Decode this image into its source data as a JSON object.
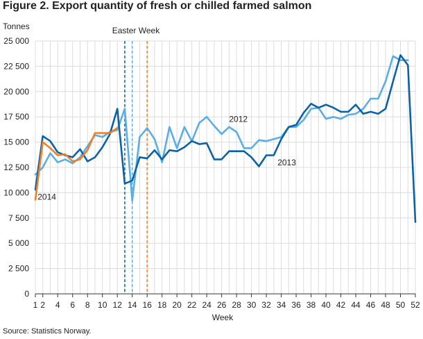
{
  "chart_data": {
    "type": "line",
    "title": "Figure 2. Export quantity of fresh or chilled farmed salmon",
    "ylabel": "Tonnes",
    "xlabel": "Week",
    "source": "Source: Statistics Norway.",
    "xlim": [
      1,
      52
    ],
    "ylim": [
      0,
      25000
    ],
    "x_ticks": [
      1,
      2,
      4,
      6,
      8,
      10,
      12,
      14,
      16,
      18,
      20,
      22,
      24,
      26,
      28,
      30,
      32,
      34,
      36,
      38,
      40,
      42,
      44,
      46,
      48,
      50,
      52
    ],
    "y_ticks": [
      {
        "value": 0,
        "label": "0"
      },
      {
        "value": 2500,
        "label": "2 500"
      },
      {
        "value": 5000,
        "label": "5 000"
      },
      {
        "value": 7500,
        "label": "7 500"
      },
      {
        "value": 10000,
        "label": "10 000"
      },
      {
        "value": 12500,
        "label": "12 500"
      },
      {
        "value": 15000,
        "label": "15 000"
      },
      {
        "value": 17500,
        "label": "17 500"
      },
      {
        "value": 20000,
        "label": "20 000"
      },
      {
        "value": 22500,
        "label": "22 500"
      },
      {
        "value": 25000,
        "label": "25 000"
      }
    ],
    "grid": "vertical and horizontal",
    "annotations": [
      {
        "text": "Easter Week"
      }
    ],
    "easter_weeks": [
      {
        "week": 13,
        "color": "#0b62a4"
      },
      {
        "week": 14,
        "color": "#5aaee3"
      },
      {
        "week": 16,
        "color": "#f07f26"
      }
    ],
    "series": [
      {
        "name": "2012",
        "color": "#5aaee3",
        "label": {
          "week": 27,
          "value": 17000
        },
        "x": [
          1,
          2,
          3,
          4,
          5,
          6,
          7,
          8,
          9,
          10,
          11,
          12,
          13,
          14,
          15,
          16,
          17,
          18,
          19,
          20,
          21,
          22,
          23,
          24,
          25,
          26,
          27,
          28,
          29,
          30,
          31,
          32,
          33,
          34,
          35,
          36,
          37,
          38,
          39,
          40,
          41,
          42,
          43,
          44,
          45,
          46,
          47,
          48,
          49,
          50,
          51
        ],
        "values": [
          11800,
          12500,
          13900,
          13000,
          13300,
          12900,
          13500,
          14600,
          15700,
          15500,
          16000,
          16200,
          18300,
          9200,
          15500,
          16400,
          15300,
          13000,
          16500,
          14400,
          16500,
          15100,
          16900,
          17500,
          16600,
          15800,
          16500,
          16000,
          14400,
          14400,
          15200,
          15100,
          15300,
          15500,
          16500,
          16500,
          17200,
          18300,
          18400,
          17300,
          17500,
          17300,
          17700,
          17800,
          18300,
          19300,
          19300,
          21000,
          23500,
          23100,
          23100
        ]
      },
      {
        "name": "2013",
        "color": "#0b62a4",
        "label": {
          "week": 33.5,
          "value": 12700
        },
        "x": [
          1,
          2,
          3,
          4,
          5,
          6,
          7,
          8,
          9,
          10,
          11,
          12,
          13,
          14,
          15,
          16,
          17,
          18,
          19,
          20,
          21,
          22,
          23,
          24,
          25,
          26,
          27,
          28,
          29,
          30,
          31,
          32,
          33,
          34,
          35,
          36,
          37,
          38,
          39,
          40,
          41,
          42,
          43,
          44,
          45,
          46,
          47,
          48,
          49,
          50,
          51,
          52
        ],
        "values": [
          10300,
          15600,
          15100,
          14000,
          13700,
          13500,
          14300,
          13100,
          13500,
          14500,
          15800,
          18300,
          10900,
          11200,
          13500,
          13400,
          14200,
          13300,
          14200,
          14100,
          14500,
          15100,
          14800,
          14900,
          13300,
          13300,
          14100,
          14100,
          14100,
          13500,
          12600,
          13700,
          13700,
          15300,
          16500,
          16700,
          17900,
          18800,
          18400,
          18700,
          18400,
          18000,
          18000,
          18700,
          17800,
          18000,
          17800,
          18300,
          21000,
          23600,
          22600,
          7100
        ]
      },
      {
        "name": "2014",
        "color": "#f07f26",
        "label": {
          "week": 1.3,
          "value": 9300
        },
        "x": [
          1,
          2,
          3,
          4,
          5,
          6,
          7,
          8,
          9,
          10,
          11,
          12
        ],
        "values": [
          9300,
          15000,
          14400,
          13700,
          13800,
          13100,
          13300,
          14200,
          15900,
          15900,
          15900,
          16400
        ]
      }
    ]
  }
}
